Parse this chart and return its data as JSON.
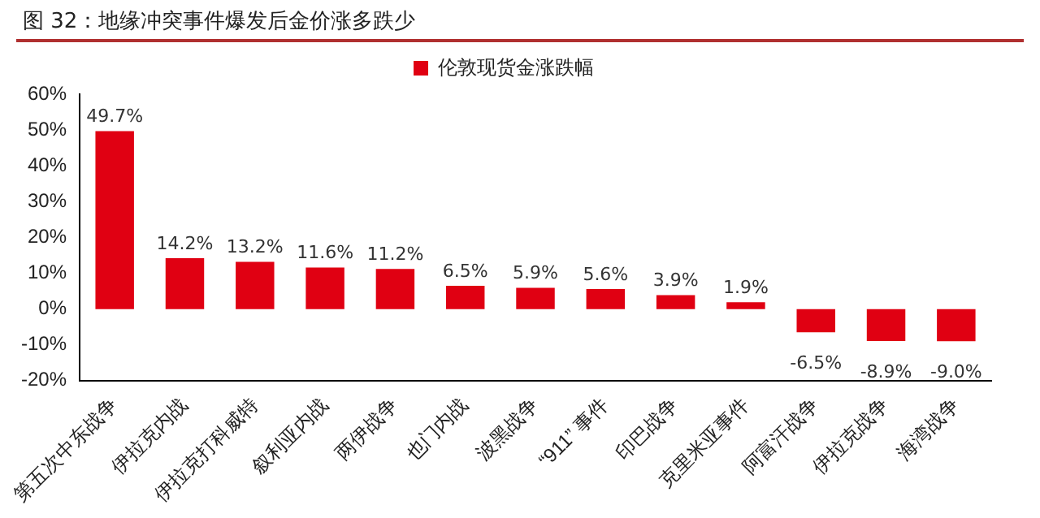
{
  "chart_data": {
    "type": "bar",
    "title": "图 32：地缘冲突事件爆发后金价涨多跌少",
    "categories": [
      "第五次中东战争",
      "伊拉克内战",
      "伊拉克打科威特",
      "叙利亚内战",
      "两伊战争",
      "也门内战",
      "波黑战争",
      "“911” 事件",
      "印巴战争",
      "克里米亚事件",
      "阿富汗战争",
      "伊拉克战争",
      "海湾战争"
    ],
    "series": [
      {
        "name": "伦敦现货金涨跌幅",
        "color": "#e00012",
        "values": [
          49.7,
          14.2,
          13.2,
          11.6,
          11.2,
          6.5,
          5.9,
          5.6,
          3.9,
          1.9,
          -6.5,
          -8.9,
          -9.0
        ],
        "value_labels": [
          "49.7%",
          "14.2%",
          "13.2%",
          "11.6%",
          "11.2%",
          "6.5%",
          "5.9%",
          "5.6%",
          "3.9%",
          "1.9%",
          "-6.5%",
          "-8.9%",
          "-9.0%"
        ]
      }
    ],
    "ylim": [
      -20,
      60
    ],
    "yticks": [
      {
        "value": -20,
        "label": "-20%"
      },
      {
        "value": -10,
        "label": "-10%"
      },
      {
        "value": 0,
        "label": "0%"
      },
      {
        "value": 10,
        "label": "10%"
      },
      {
        "value": 20,
        "label": "20%"
      },
      {
        "value": 30,
        "label": "30%"
      },
      {
        "value": 40,
        "label": "40%"
      },
      {
        "value": 50,
        "label": "50%"
      },
      {
        "value": 60,
        "label": "60%"
      }
    ],
    "grid": false,
    "legend": "top"
  }
}
